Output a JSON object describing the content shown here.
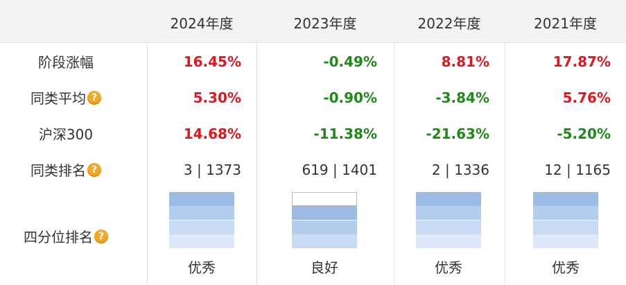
{
  "colors": {
    "up": "#e4161d",
    "down": "#1e8a17",
    "q_top": "#9cbce6",
    "q_2": "#b3cdee",
    "q_3": "#cadcf4",
    "q_4": "#dde8f8",
    "q_empty": "#ffffff"
  },
  "columns": [
    "2024年度",
    "2023年度",
    "2022年度",
    "2021年度"
  ],
  "rows": {
    "stage_return": {
      "label": "阶段涨幅",
      "values": [
        "16.45%",
        "-0.49%",
        "8.81%",
        "17.87%"
      ],
      "trend": [
        "up",
        "down",
        "up",
        "up"
      ]
    },
    "peer_avg": {
      "label": "同类平均",
      "values": [
        "5.30%",
        "-0.90%",
        "-3.84%",
        "5.76%"
      ],
      "trend": [
        "up",
        "down",
        "down",
        "up"
      ]
    },
    "csi300": {
      "label": "沪深300",
      "values": [
        "14.68%",
        "-11.38%",
        "-21.63%",
        "-5.20%"
      ],
      "trend": [
        "up",
        "down",
        "down",
        "down"
      ]
    },
    "peer_rank": {
      "label": "同类排名",
      "values": [
        "3 | 1373",
        "619 | 1401",
        "2 | 1336",
        "12 | 1165"
      ]
    },
    "quartile": {
      "label": "四分位排名",
      "levels": [
        "优秀",
        "良好",
        "优秀",
        "优秀"
      ],
      "filled_quarters": [
        4,
        3,
        4,
        4
      ]
    }
  },
  "help_icon_glyph": "?"
}
